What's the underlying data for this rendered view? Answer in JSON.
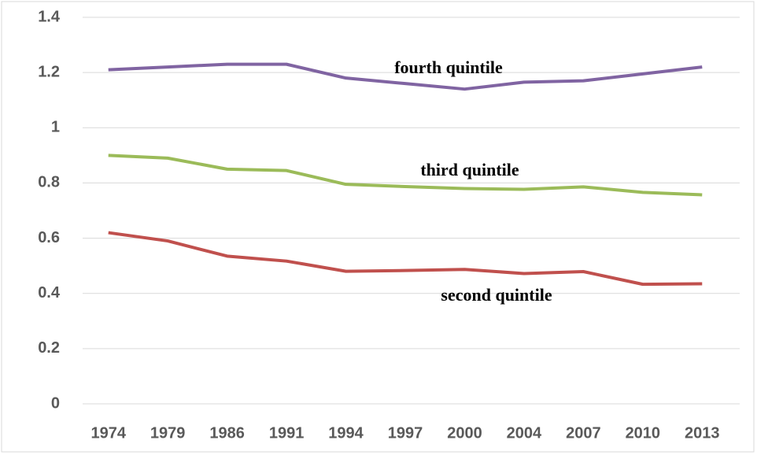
{
  "chart_data": {
    "type": "line",
    "categories": [
      "1974",
      "1979",
      "1986",
      "1991",
      "1994",
      "1997",
      "2000",
      "2004",
      "2007",
      "2010",
      "2013"
    ],
    "series": [
      {
        "name": "fourth quintile",
        "color": "#8064a2",
        "values": [
          1.21,
          1.22,
          1.23,
          1.23,
          1.18,
          1.16,
          1.14,
          1.165,
          1.17,
          1.195,
          1.22
        ]
      },
      {
        "name": "third quintile",
        "color": "#9bbb59",
        "values": [
          0.9,
          0.89,
          0.85,
          0.845,
          0.795,
          0.787,
          0.78,
          0.777,
          0.786,
          0.766,
          0.757
        ]
      },
      {
        "name": "second quintile",
        "color": "#c0504d",
        "values": [
          0.62,
          0.59,
          0.535,
          0.517,
          0.48,
          0.483,
          0.487,
          0.472,
          0.479,
          0.433,
          0.435
        ]
      }
    ],
    "ylim": [
      0,
      1.4
    ],
    "yticks": [
      0,
      0.2,
      0.4,
      0.6,
      0.8,
      1,
      1.2,
      1.4
    ],
    "grid": true
  }
}
